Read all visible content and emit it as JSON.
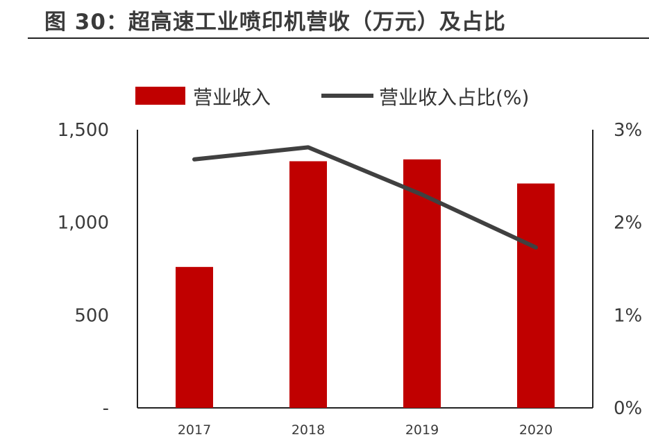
{
  "title": "图 30：超高速工业喷印机营收（万元）及占比",
  "colors": {
    "bar": "#c00000",
    "line": "#404040",
    "axis": "#222222"
  },
  "chart_data": {
    "type": "bar",
    "categories": [
      "2017",
      "2018",
      "2019",
      "2020"
    ],
    "series": [
      {
        "name": "营业收入",
        "type": "bar",
        "axis": "left",
        "values": [
          760,
          1330,
          1340,
          1210
        ]
      },
      {
        "name": "营业收入占比(%)",
        "type": "line",
        "axis": "right",
        "values": [
          2.68,
          2.81,
          2.3,
          1.73
        ]
      }
    ],
    "y_left": {
      "ylim": [
        0,
        1500
      ],
      "ticks": [
        0,
        500,
        1000,
        1500
      ],
      "tick_labels": [
        "-",
        "500",
        "1,000",
        "1,500"
      ]
    },
    "y_right": {
      "ylim": [
        0,
        3
      ],
      "ticks": [
        0,
        1,
        2,
        3
      ],
      "tick_labels": [
        "0%",
        "1%",
        "2%",
        "3%"
      ]
    },
    "legend_position": "top",
    "grid": false
  }
}
